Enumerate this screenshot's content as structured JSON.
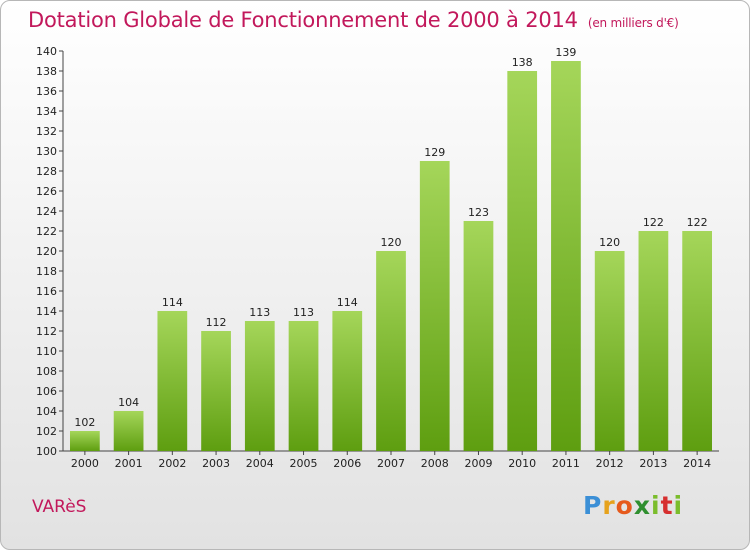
{
  "chart_title": "Dotation Globale de Fonctionnement de 2000 à 2014",
  "chart_subtitle": "(en milliers d'€)",
  "commune": "VARèS",
  "logo": [
    "P",
    "r",
    "o",
    "x",
    "i",
    "t",
    "i"
  ],
  "colors": {
    "title": "#c2185b",
    "bar_top": "#a5d65a",
    "bar_bottom": "#5e9e10"
  },
  "chart_data": {
    "type": "bar",
    "title": "Dotation Globale de Fonctionnement de 2000 à 2014",
    "subtitle": "(en milliers d'€)",
    "categories": [
      "2000",
      "2001",
      "2002",
      "2003",
      "2004",
      "2005",
      "2006",
      "2007",
      "2008",
      "2009",
      "2010",
      "2011",
      "2012",
      "2013",
      "2014"
    ],
    "values": [
      102,
      104,
      114,
      112,
      113,
      113,
      114,
      120,
      129,
      123,
      138,
      139,
      120,
      122,
      122
    ],
    "ylim": [
      100,
      140
    ],
    "ytick_step": 2,
    "grid": false,
    "xlabel": "",
    "ylabel": ""
  }
}
